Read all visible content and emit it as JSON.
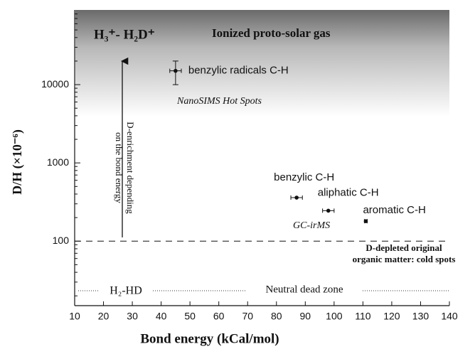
{
  "chart_data": {
    "type": "scatter",
    "x_label": "Bond energy (kCal/mol)",
    "y_label": "D/H (×10⁻⁶)",
    "xlim": [
      10,
      140
    ],
    "xticks": [
      10,
      20,
      30,
      40,
      50,
      60,
      70,
      80,
      90,
      100,
      110,
      120,
      130,
      140
    ],
    "ylim": [
      15,
      90000
    ],
    "yticks": [
      100,
      1000,
      10000
    ],
    "yminorticks": [
      20,
      30,
      40,
      50,
      60,
      70,
      80,
      90,
      200,
      300,
      400,
      500,
      600,
      700,
      800,
      900,
      2000,
      3000,
      4000,
      5000,
      6000,
      7000,
      8000,
      9000,
      20000,
      30000,
      40000,
      50000,
      60000,
      70000,
      80000
    ],
    "log_y": true,
    "color": "#111111",
    "series": [
      {
        "name": null,
        "x": [
          45,
          87,
          98,
          111
        ],
        "values": [
          15000,
          360,
          245,
          180
        ],
        "xerr": [
          2,
          2,
          2,
          0.5
        ],
        "yerr": [
          5000,
          null,
          null,
          null
        ],
        "labels": [
          "benzylic radicals C-H",
          "benzylic C-H",
          "aliphatic C-H",
          "aromatic C-H"
        ]
      }
    ],
    "hline": 100,
    "annotations": {
      "ion_species": "H₃⁺- H₂D⁺",
      "ion_zone": "Ionized proto-solar gas",
      "hot_spots": "NanoSIMS Hot Spots",
      "gc": "GC-irMS",
      "arrow_line1": "D-enrichment depending",
      "arrow_line2": "on the bond energy",
      "cold_line1": "D-depleted original",
      "cold_line2": "organic matter: cold spots",
      "neutral_species": "H₂-HD",
      "neutral_zone": "Neutral dead zone"
    }
  }
}
